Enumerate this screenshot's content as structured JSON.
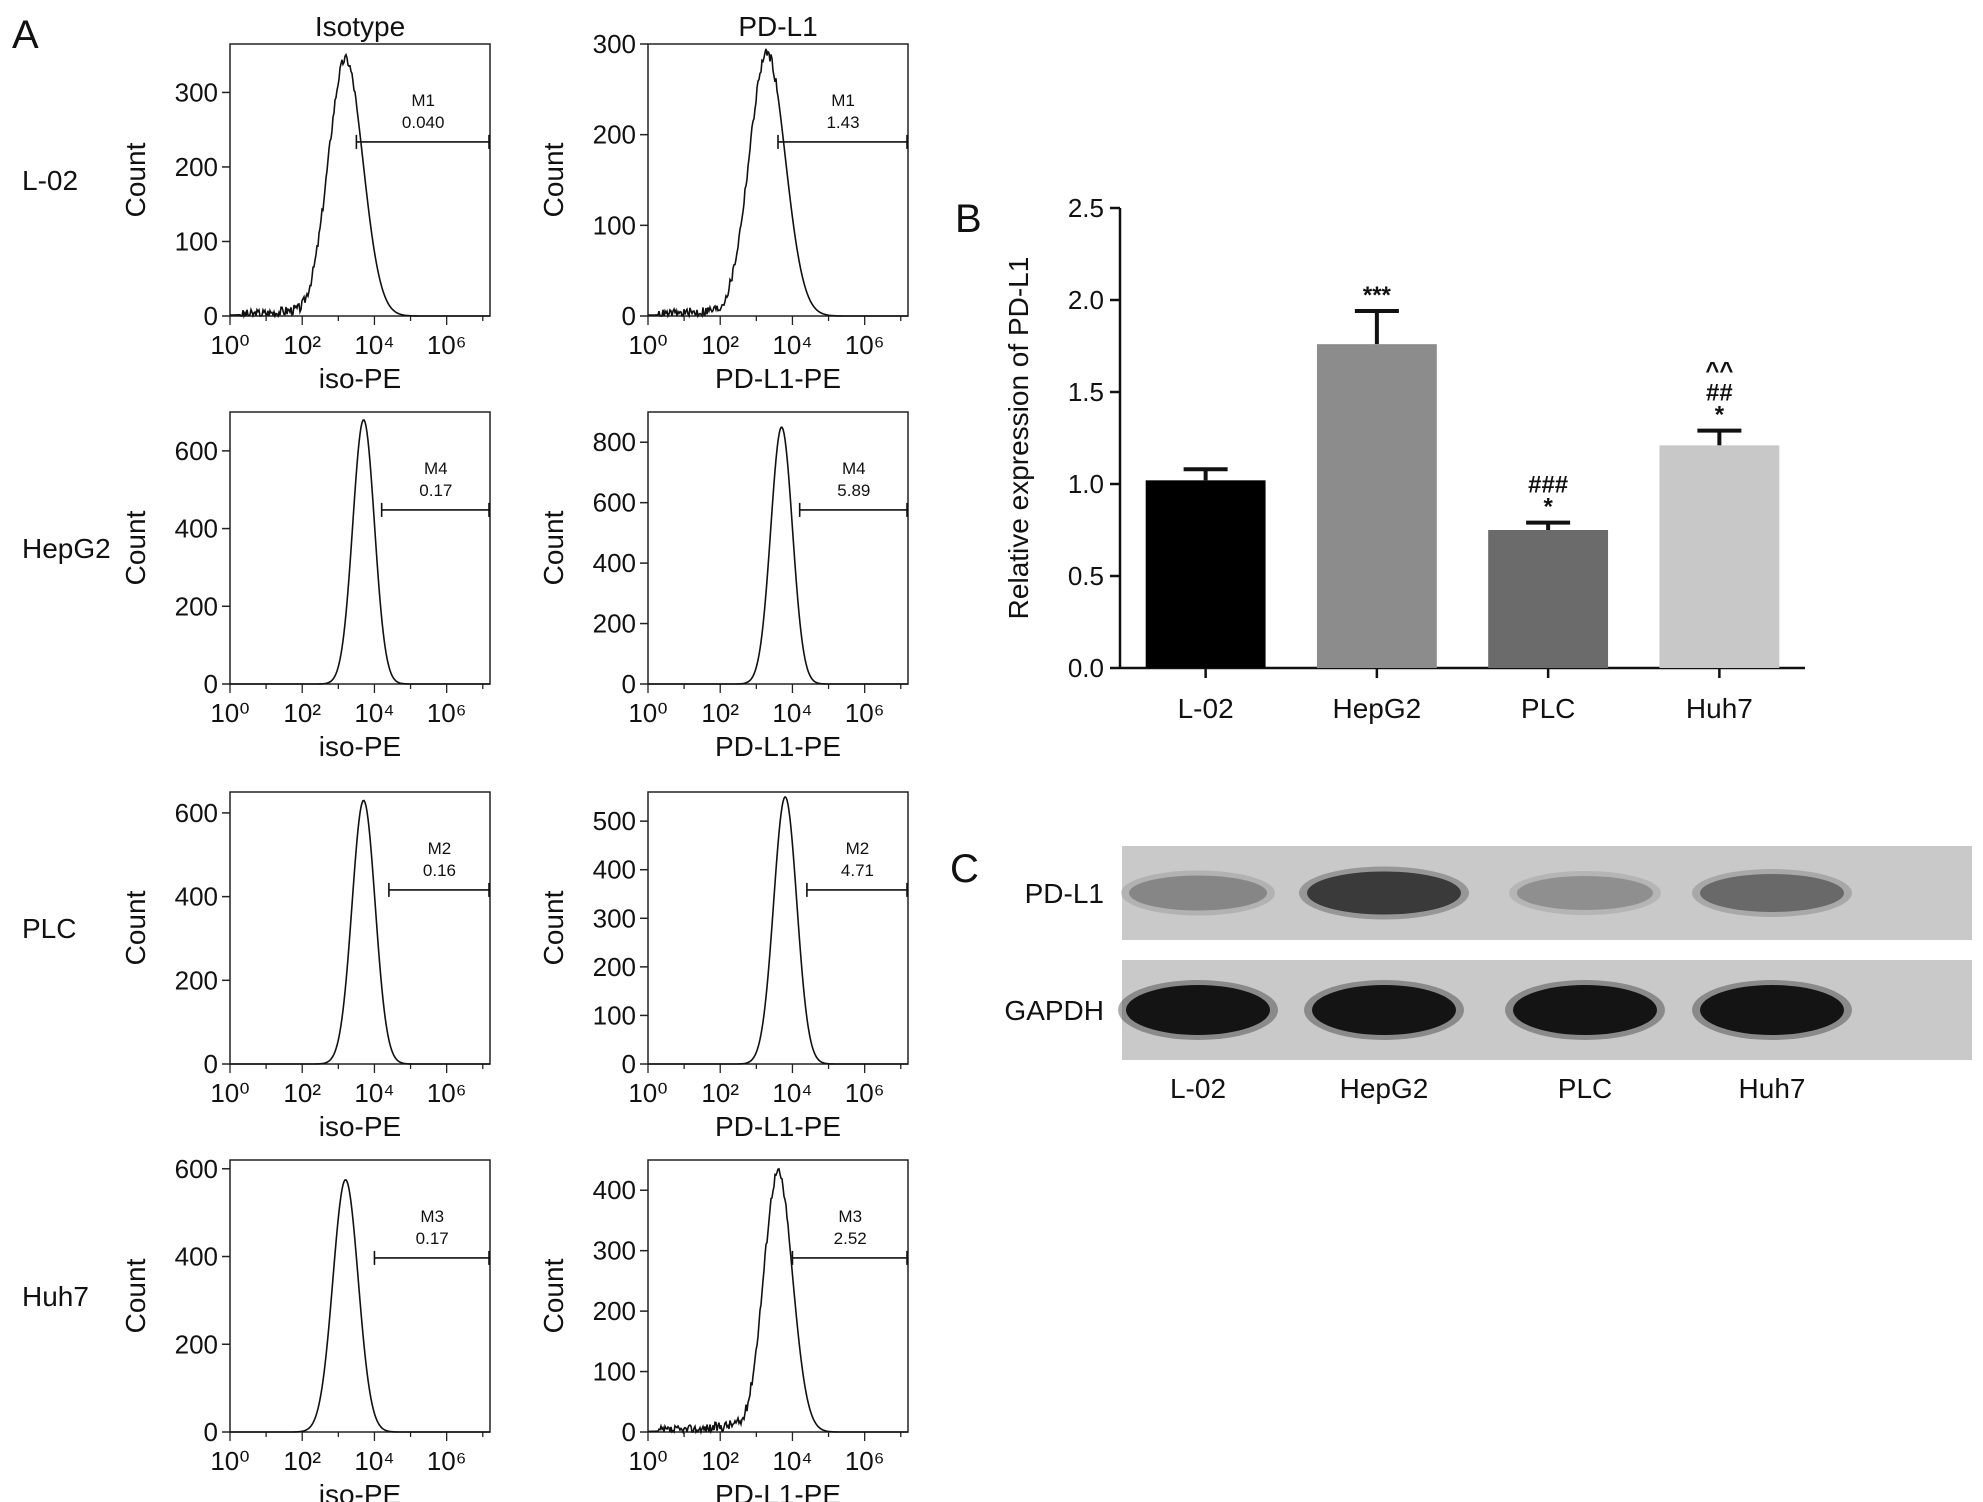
{
  "panels": {
    "a_label": "A",
    "b_label": "B",
    "c_label": "C"
  },
  "flow": {
    "column_titles": [
      "Isotype",
      "PD-L1"
    ],
    "y_axis_label": "Count",
    "x_tick_labels": [
      "10⁰",
      "10²",
      "10⁴",
      "10⁶"
    ],
    "x_axis_labels": [
      "iso-PE",
      "PD-L1-PE"
    ],
    "rows": [
      {
        "cell_line": "L-02",
        "isotype": {
          "gate": "M1",
          "percent": "0.040",
          "yticks": [
            0,
            100,
            200,
            300
          ],
          "ymax": 365,
          "peak_log": 3.2,
          "peak_count": 345,
          "width": 0.48,
          "left_tail": true,
          "gate_start_log": 3.5
        },
        "pdl1": {
          "gate": "M1",
          "percent": "1.43",
          "yticks": [
            0,
            100,
            200,
            300
          ],
          "ymax": 300,
          "peak_log": 3.3,
          "peak_count": 290,
          "width": 0.5,
          "left_tail": true,
          "gate_start_log": 3.6
        }
      },
      {
        "cell_line": "HepG2",
        "isotype": {
          "gate": "M4",
          "percent": "0.17",
          "yticks": [
            0,
            200,
            400,
            600
          ],
          "ymax": 700,
          "peak_log": 3.7,
          "peak_count": 680,
          "width": 0.3,
          "left_tail": false,
          "gate_start_log": 4.2
        },
        "pdl1": {
          "gate": "M4",
          "percent": "5.89",
          "yticks": [
            0,
            200,
            400,
            600,
            800
          ],
          "ymax": 900,
          "peak_log": 3.7,
          "peak_count": 850,
          "width": 0.3,
          "left_tail": false,
          "gate_start_log": 4.2
        }
      },
      {
        "cell_line": "PLC",
        "isotype": {
          "gate": "M2",
          "percent": "0.16",
          "yticks": [
            0,
            200,
            400,
            600
          ],
          "ymax": 650,
          "peak_log": 3.7,
          "peak_count": 630,
          "width": 0.32,
          "left_tail": false,
          "gate_start_log": 4.4
        },
        "pdl1": {
          "gate": "M2",
          "percent": "4.71",
          "yticks": [
            0,
            100,
            200,
            300,
            400,
            500
          ],
          "ymax": 560,
          "peak_log": 3.8,
          "peak_count": 550,
          "width": 0.32,
          "left_tail": false,
          "gate_start_log": 4.4
        }
      },
      {
        "cell_line": "Huh7",
        "isotype": {
          "gate": "M3",
          "percent": "0.17",
          "yticks": [
            0,
            200,
            400,
            600
          ],
          "ymax": 620,
          "peak_log": 3.2,
          "peak_count": 575,
          "width": 0.35,
          "left_tail": false,
          "gate_start_log": 4.0
        },
        "pdl1": {
          "gate": "M3",
          "percent": "2.52",
          "yticks": [
            0,
            100,
            200,
            300,
            400
          ],
          "ymax": 450,
          "peak_log": 3.6,
          "peak_count": 430,
          "width": 0.4,
          "left_tail": true,
          "gate_start_log": 4.0
        }
      }
    ]
  },
  "chart_data": {
    "type": "bar",
    "categories": [
      "L-02",
      "HepG2",
      "PLC",
      "Huh7"
    ],
    "values": [
      1.02,
      1.76,
      0.75,
      1.21
    ],
    "errors": [
      0.06,
      0.18,
      0.04,
      0.08
    ],
    "colors": [
      "#000000",
      "#8c8c8c",
      "#6b6b6b",
      "#c8c8c8"
    ],
    "annotations": [
      "",
      "***",
      "###\n*",
      "^^\n##\n*"
    ],
    "title": "",
    "xlabel": "",
    "ylabel": "Relative expression of PD-L1",
    "ylim": [
      0,
      2.5
    ],
    "yticks": [
      "0.0",
      "0.5",
      "1.0",
      "1.5",
      "2.0",
      "2.5"
    ],
    "grid": false
  },
  "western_blot": {
    "rows": [
      "PD-L1",
      "GAPDH"
    ],
    "lanes": [
      "L-02",
      "HepG2",
      "PLC",
      "Huh7"
    ],
    "pdl1_band_intensity": [
      0.35,
      0.75,
      0.3,
      0.5
    ],
    "gapdh_band_intensity": [
      0.95,
      0.95,
      0.95,
      0.95
    ],
    "membrane_color": "#c9c9c9"
  }
}
